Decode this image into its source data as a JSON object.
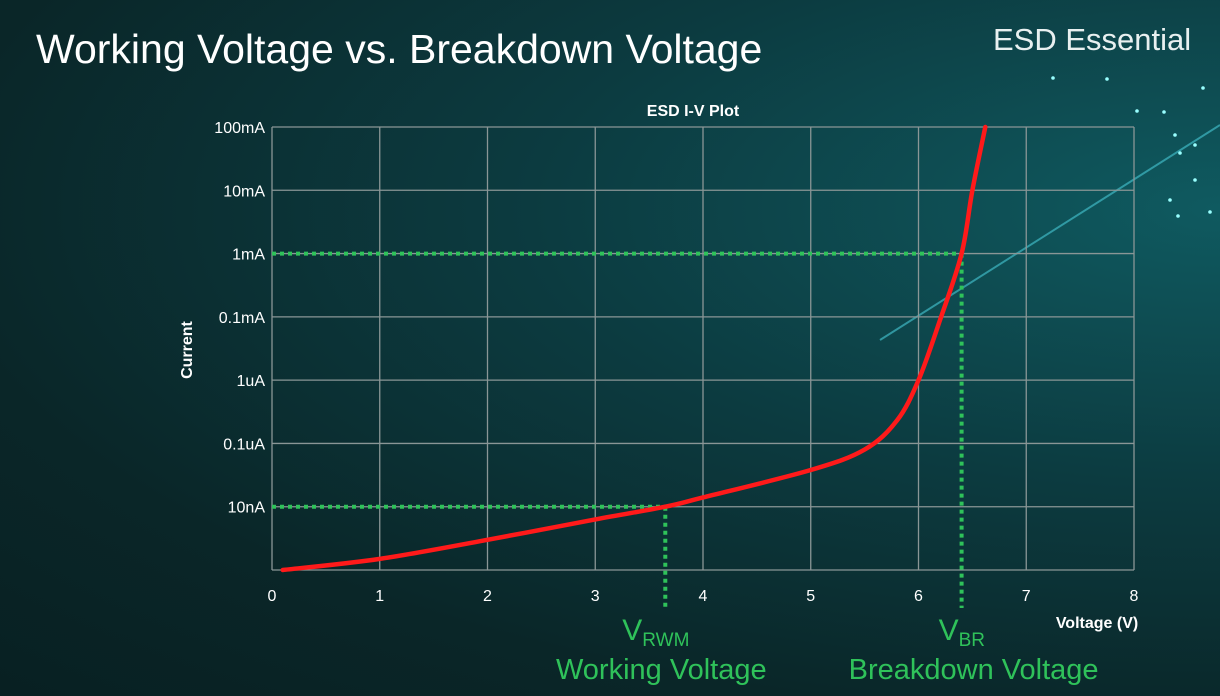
{
  "slide": {
    "title": "Working Voltage vs. Breakdown Voltage",
    "brand": "ESD Essential"
  },
  "chart_data": {
    "type": "line",
    "title": "ESD I-V Plot",
    "xlabel": "Voltage (V)",
    "ylabel": "Current",
    "xlim": [
      0,
      8
    ],
    "x_ticks": [
      "0",
      "1",
      "2",
      "3",
      "4",
      "5",
      "6",
      "7",
      "8"
    ],
    "y_scale": "log",
    "y_ticks": [
      {
        "value": 1e-09,
        "label": ""
      },
      {
        "value": 1e-08,
        "label": "10nA"
      },
      {
        "value": 1e-07,
        "label": "0.1uA"
      },
      {
        "value": 1e-06,
        "label": "1uA"
      },
      {
        "value": 0.0001,
        "label": "0.1mA"
      },
      {
        "value": 0.001,
        "label": "1mA"
      },
      {
        "value": 0.01,
        "label": "10mA"
      },
      {
        "value": 0.1,
        "label": "100mA"
      }
    ],
    "grid": true,
    "series": [
      {
        "color": "#ff1a1a",
        "x": [
          0.1,
          1,
          2,
          3,
          3.65,
          4,
          5,
          5.5,
          5.8,
          6,
          6.2,
          6.4,
          6.5,
          6.62
        ],
        "y": [
          1e-09,
          1.5e-09,
          3e-09,
          6.3e-09,
          1e-08,
          1.4e-08,
          3.8e-08,
          8e-08,
          2.3e-07,
          1e-06,
          8e-05,
          0.001,
          0.01,
          0.1
        ]
      }
    ],
    "markers": [
      {
        "x": 3.65,
        "y": 1e-08,
        "symbol": "V",
        "subscript": "RWM",
        "label": "Working Voltage",
        "color": "#2fc25a"
      },
      {
        "x": 6.4,
        "y": 0.001,
        "symbol": "V",
        "subscript": "BR",
        "label": "Breakdown Voltage",
        "color": "#2fc25a"
      }
    ]
  }
}
